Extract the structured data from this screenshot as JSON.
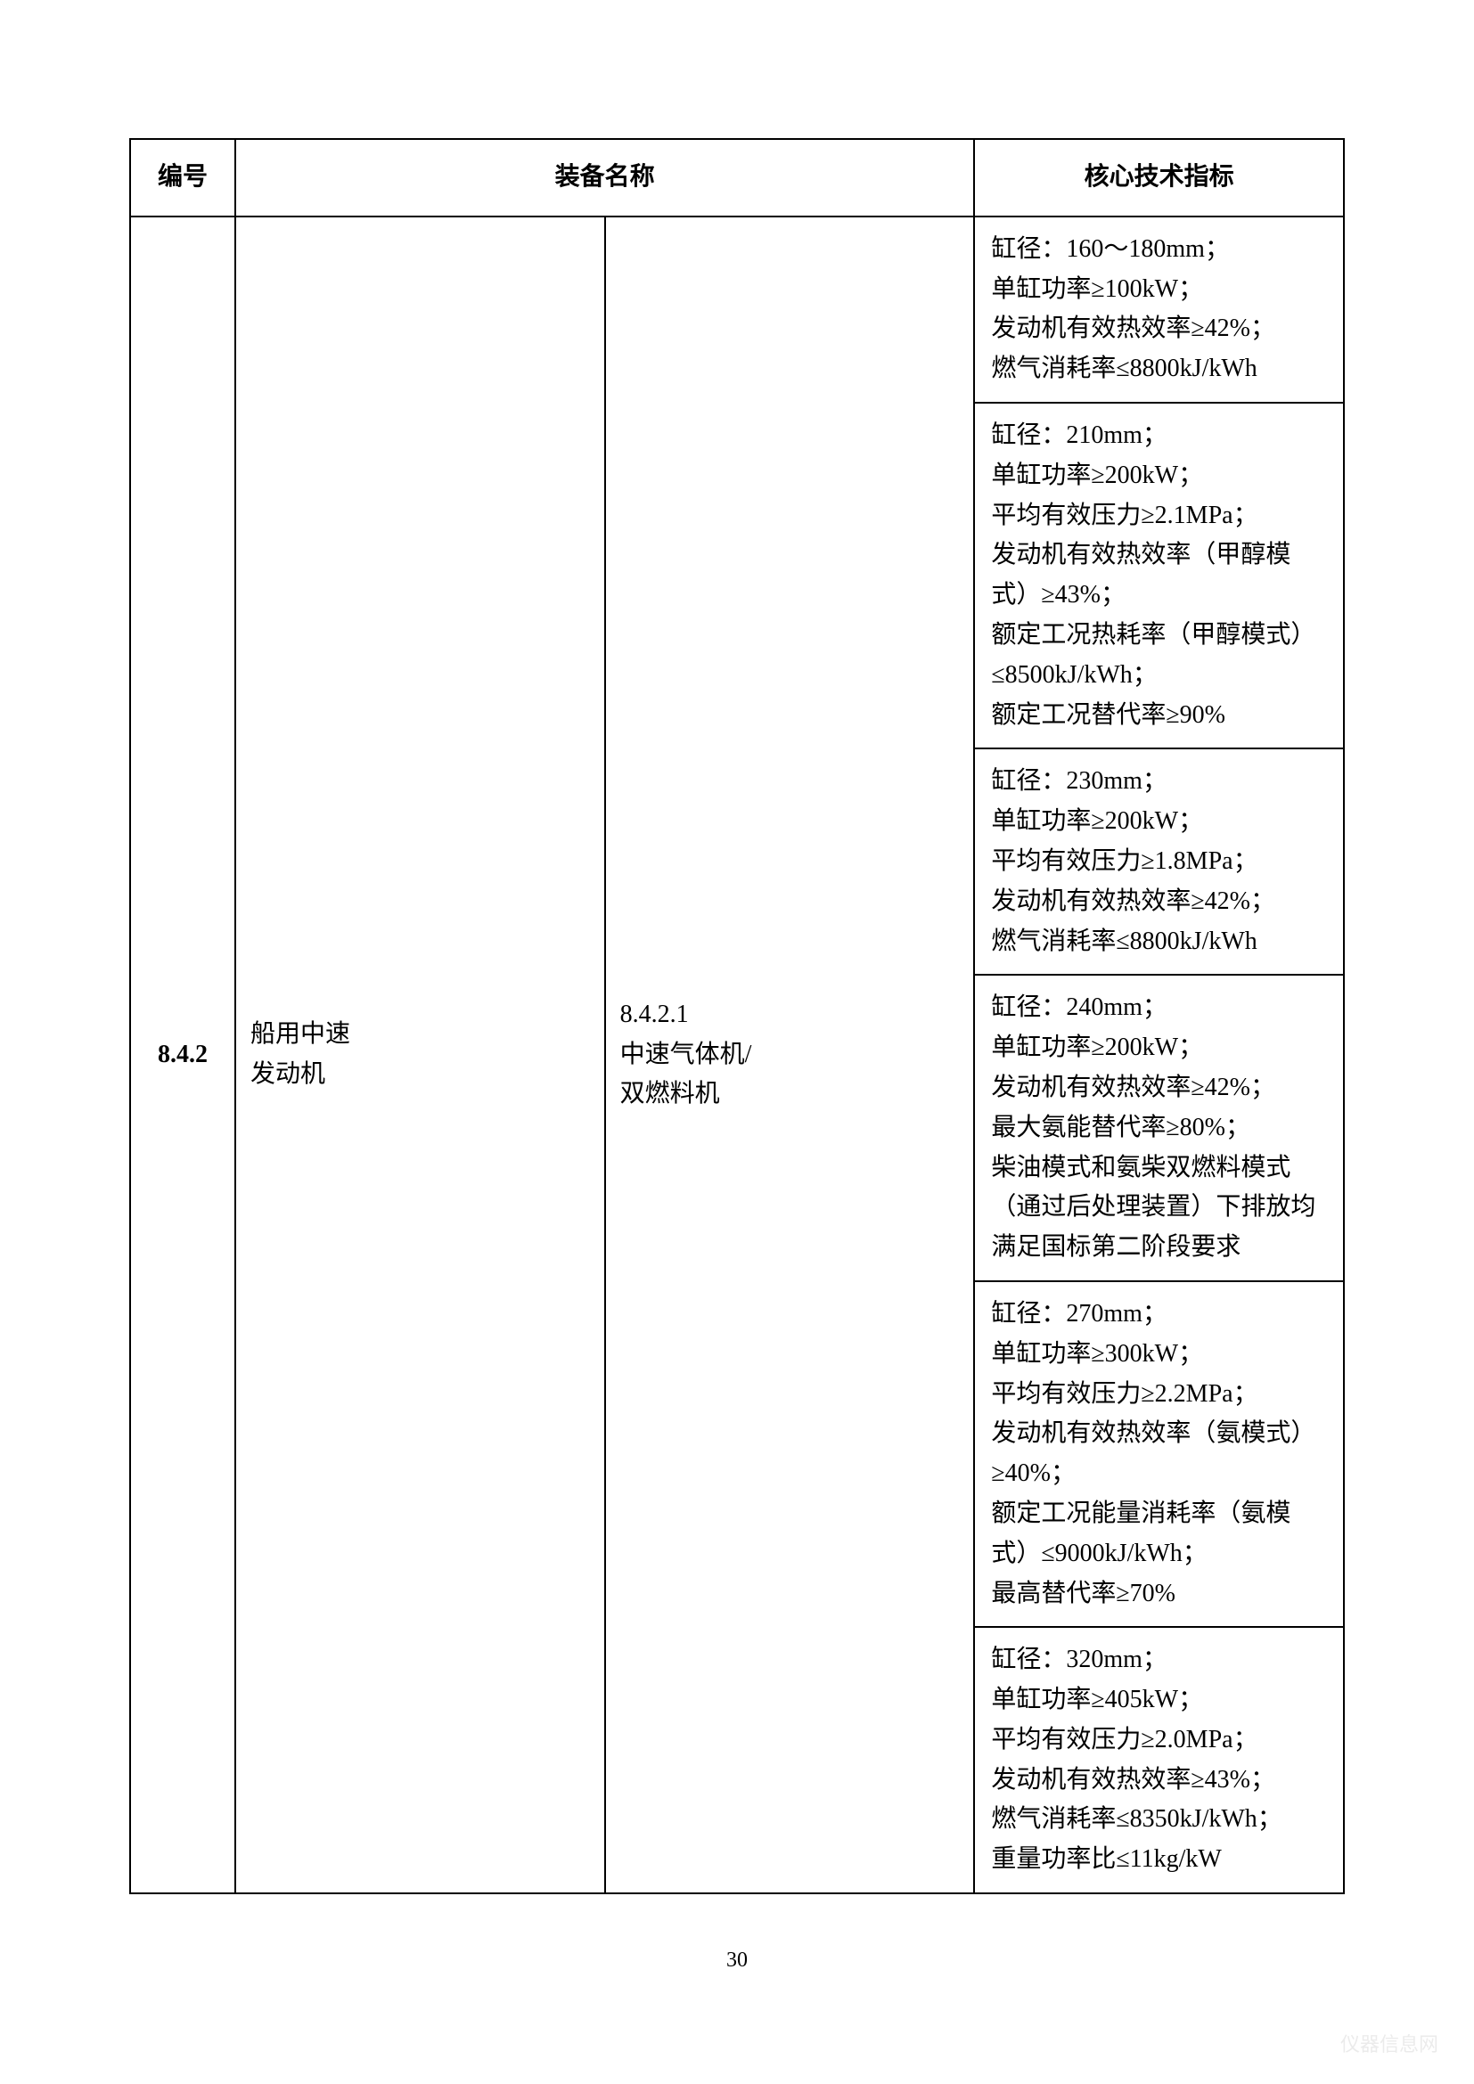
{
  "table": {
    "headers": {
      "col1": "编号",
      "col2": "装备名称",
      "col3": "核心技术指标"
    },
    "row_number": "8.4.2",
    "equipment_name": "船用中速\n发动机",
    "sub_equipment": "8.4.2.1\n中速气体机/\n双燃料机",
    "specs": [
      [
        "缸径：160～180mm；",
        "单缸功率≥100kW；",
        "发动机有效热效率≥42%；",
        "燃气消耗率≤8800kJ/kWh"
      ],
      [
        "缸径：210mm；",
        "单缸功率≥200kW；",
        "平均有效压力≥2.1MPa；",
        "发动机有效热效率（甲醇模式）≥43%；",
        "额定工况热耗率（甲醇模式）≤8500kJ/kWh；",
        "额定工况替代率≥90%"
      ],
      [
        "缸径：230mm；",
        "单缸功率≥200kW；",
        "平均有效压力≥1.8MPa；",
        "发动机有效热效率≥42%；",
        "燃气消耗率≤8800kJ/kWh"
      ],
      [
        "缸径：240mm；",
        "单缸功率≥200kW；",
        "发动机有效热效率≥42%；",
        "最大氨能替代率≥80%；",
        "柴油模式和氨柴双燃料模式（通过后处理装置）下排放均满足国标第二阶段要求"
      ],
      [
        "缸径：270mm；",
        "单缸功率≥300kW；",
        "平均有效压力≥2.2MPa；",
        "发动机有效热效率（氨模式）≥40%；",
        "额定工况能量消耗率（氨模式）≤9000kJ/kWh；",
        "最高替代率≥70%"
      ],
      [
        "缸径：320mm；",
        "单缸功率≥405kW；",
        "平均有效压力≥2.0MPa；",
        "发动机有效热效率≥43%；",
        "燃气消耗率≤8350kJ/kWh；",
        "重量功率比≤11kg/kW"
      ]
    ]
  },
  "page_number": "30",
  "watermark": "仪器信息网"
}
